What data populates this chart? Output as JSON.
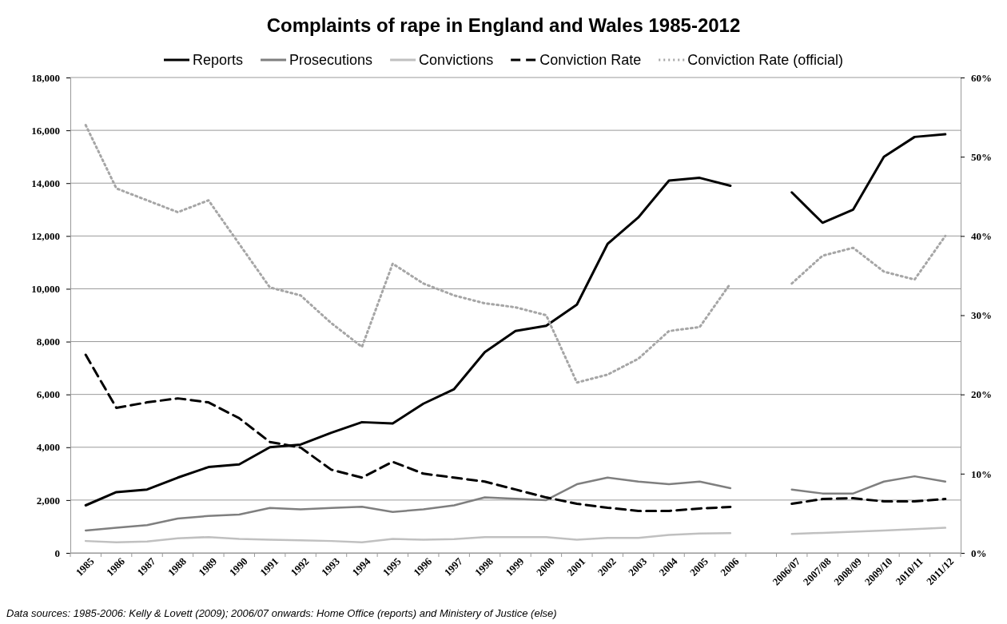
{
  "chart_data": {
    "type": "line",
    "title": "Complaints of rape in England and Wales 1985-2012",
    "categories": [
      "1985",
      "1986",
      "1987",
      "1988",
      "1989",
      "1990",
      "1991",
      "1992",
      "1993",
      "1994",
      "1995",
      "1996",
      "1997",
      "1998",
      "1999",
      "2000",
      "2001",
      "2002",
      "2003",
      "2004",
      "2005",
      "2006",
      null,
      "2006/07",
      "2007/08",
      "2008/09",
      "2009/10",
      "2010/11",
      "2011/12"
    ],
    "series": [
      {
        "name": "Reports",
        "color": "#000000",
        "line_style": "solid",
        "values": [
          1800,
          2300,
          2400,
          2850,
          3250,
          3350,
          4000,
          4100,
          4550,
          4950,
          4900,
          5650,
          6200,
          7600,
          8400,
          8600,
          9400,
          11700,
          12700,
          14100,
          14200,
          13900,
          null,
          13650,
          12500,
          13000,
          15000,
          15750,
          15850
        ]
      },
      {
        "name": "Prosecutions",
        "color": "#7f7f7f",
        "line_style": "solid",
        "values": [
          850,
          950,
          1050,
          1300,
          1400,
          1450,
          1700,
          1650,
          1700,
          1750,
          1550,
          1650,
          1800,
          2100,
          2050,
          2000,
          2600,
          2850,
          2700,
          2600,
          2700,
          2450,
          null,
          2400,
          2250,
          2250,
          2700,
          2900,
          2700
        ]
      },
      {
        "name": "Convictions",
        "color": "#c0c0c0",
        "line_style": "solid",
        "values": [
          450,
          400,
          430,
          550,
          600,
          530,
          500,
          480,
          450,
          400,
          530,
          500,
          520,
          600,
          600,
          600,
          500,
          570,
          570,
          680,
          730,
          750,
          null,
          720,
          760,
          800,
          850,
          900,
          950
        ]
      },
      {
        "name": "Conviction Rate",
        "color": "#000000",
        "line_style": "dashed",
        "axis": "y2",
        "values": [
          25,
          18.3,
          19,
          19.5,
          19,
          17,
          14,
          13.3,
          10.5,
          9.5,
          11.5,
          10,
          9.5,
          9,
          8,
          7,
          6.2,
          5.7,
          5.3,
          5.3,
          5.6,
          5.8,
          null,
          6.2,
          6.8,
          6.9,
          6.5,
          6.5,
          6.8
        ]
      },
      {
        "name": "Conviction Rate (official)",
        "color": "#a6a6a6",
        "line_style": "dotted",
        "axis": "y2",
        "values": [
          54,
          46,
          44.5,
          43,
          44.5,
          39,
          33.5,
          32.5,
          29,
          26,
          36.5,
          34,
          32.5,
          31.5,
          31,
          30,
          21.5,
          22.5,
          24.5,
          28,
          28.5,
          34,
          null,
          34,
          37.5,
          38.5,
          35.5,
          34.5,
          40
        ]
      }
    ],
    "ylim": [
      0,
      18000
    ],
    "yticks": [
      0,
      {
        "value": 2000,
        "label": "2,000"
      },
      {
        "value": 4000,
        "label": "4,000"
      },
      {
        "value": 6000,
        "label": "6,000"
      },
      {
        "value": 8000,
        "label": "8,000"
      },
      {
        "value": 10000,
        "label": "10,000"
      },
      {
        "value": 12000,
        "label": "12,000"
      },
      {
        "value": 14000,
        "label": "14,000"
      },
      {
        "value": 16000,
        "label": "16,000"
      },
      {
        "value": 18000,
        "label": "18,000"
      }
    ],
    "y2lim": [
      0,
      60
    ],
    "y2ticks": [
      {
        "value": 0,
        "label": "0%"
      },
      {
        "value": 10,
        "label": "10%"
      },
      {
        "value": 20,
        "label": "20%"
      },
      {
        "value": 30,
        "label": "30%"
      },
      {
        "value": 40,
        "label": "40%"
      },
      {
        "value": 50,
        "label": "50%"
      },
      {
        "value": 60,
        "label": "60%"
      }
    ],
    "grid": "y",
    "legend": "top",
    "marker": "none",
    "annotations": [
      "Data sources: 1985-2006: Kelly & Lovett (2009); 2006/07 onwards: Home Office (reports) and Ministery of Justice (else)"
    ]
  }
}
